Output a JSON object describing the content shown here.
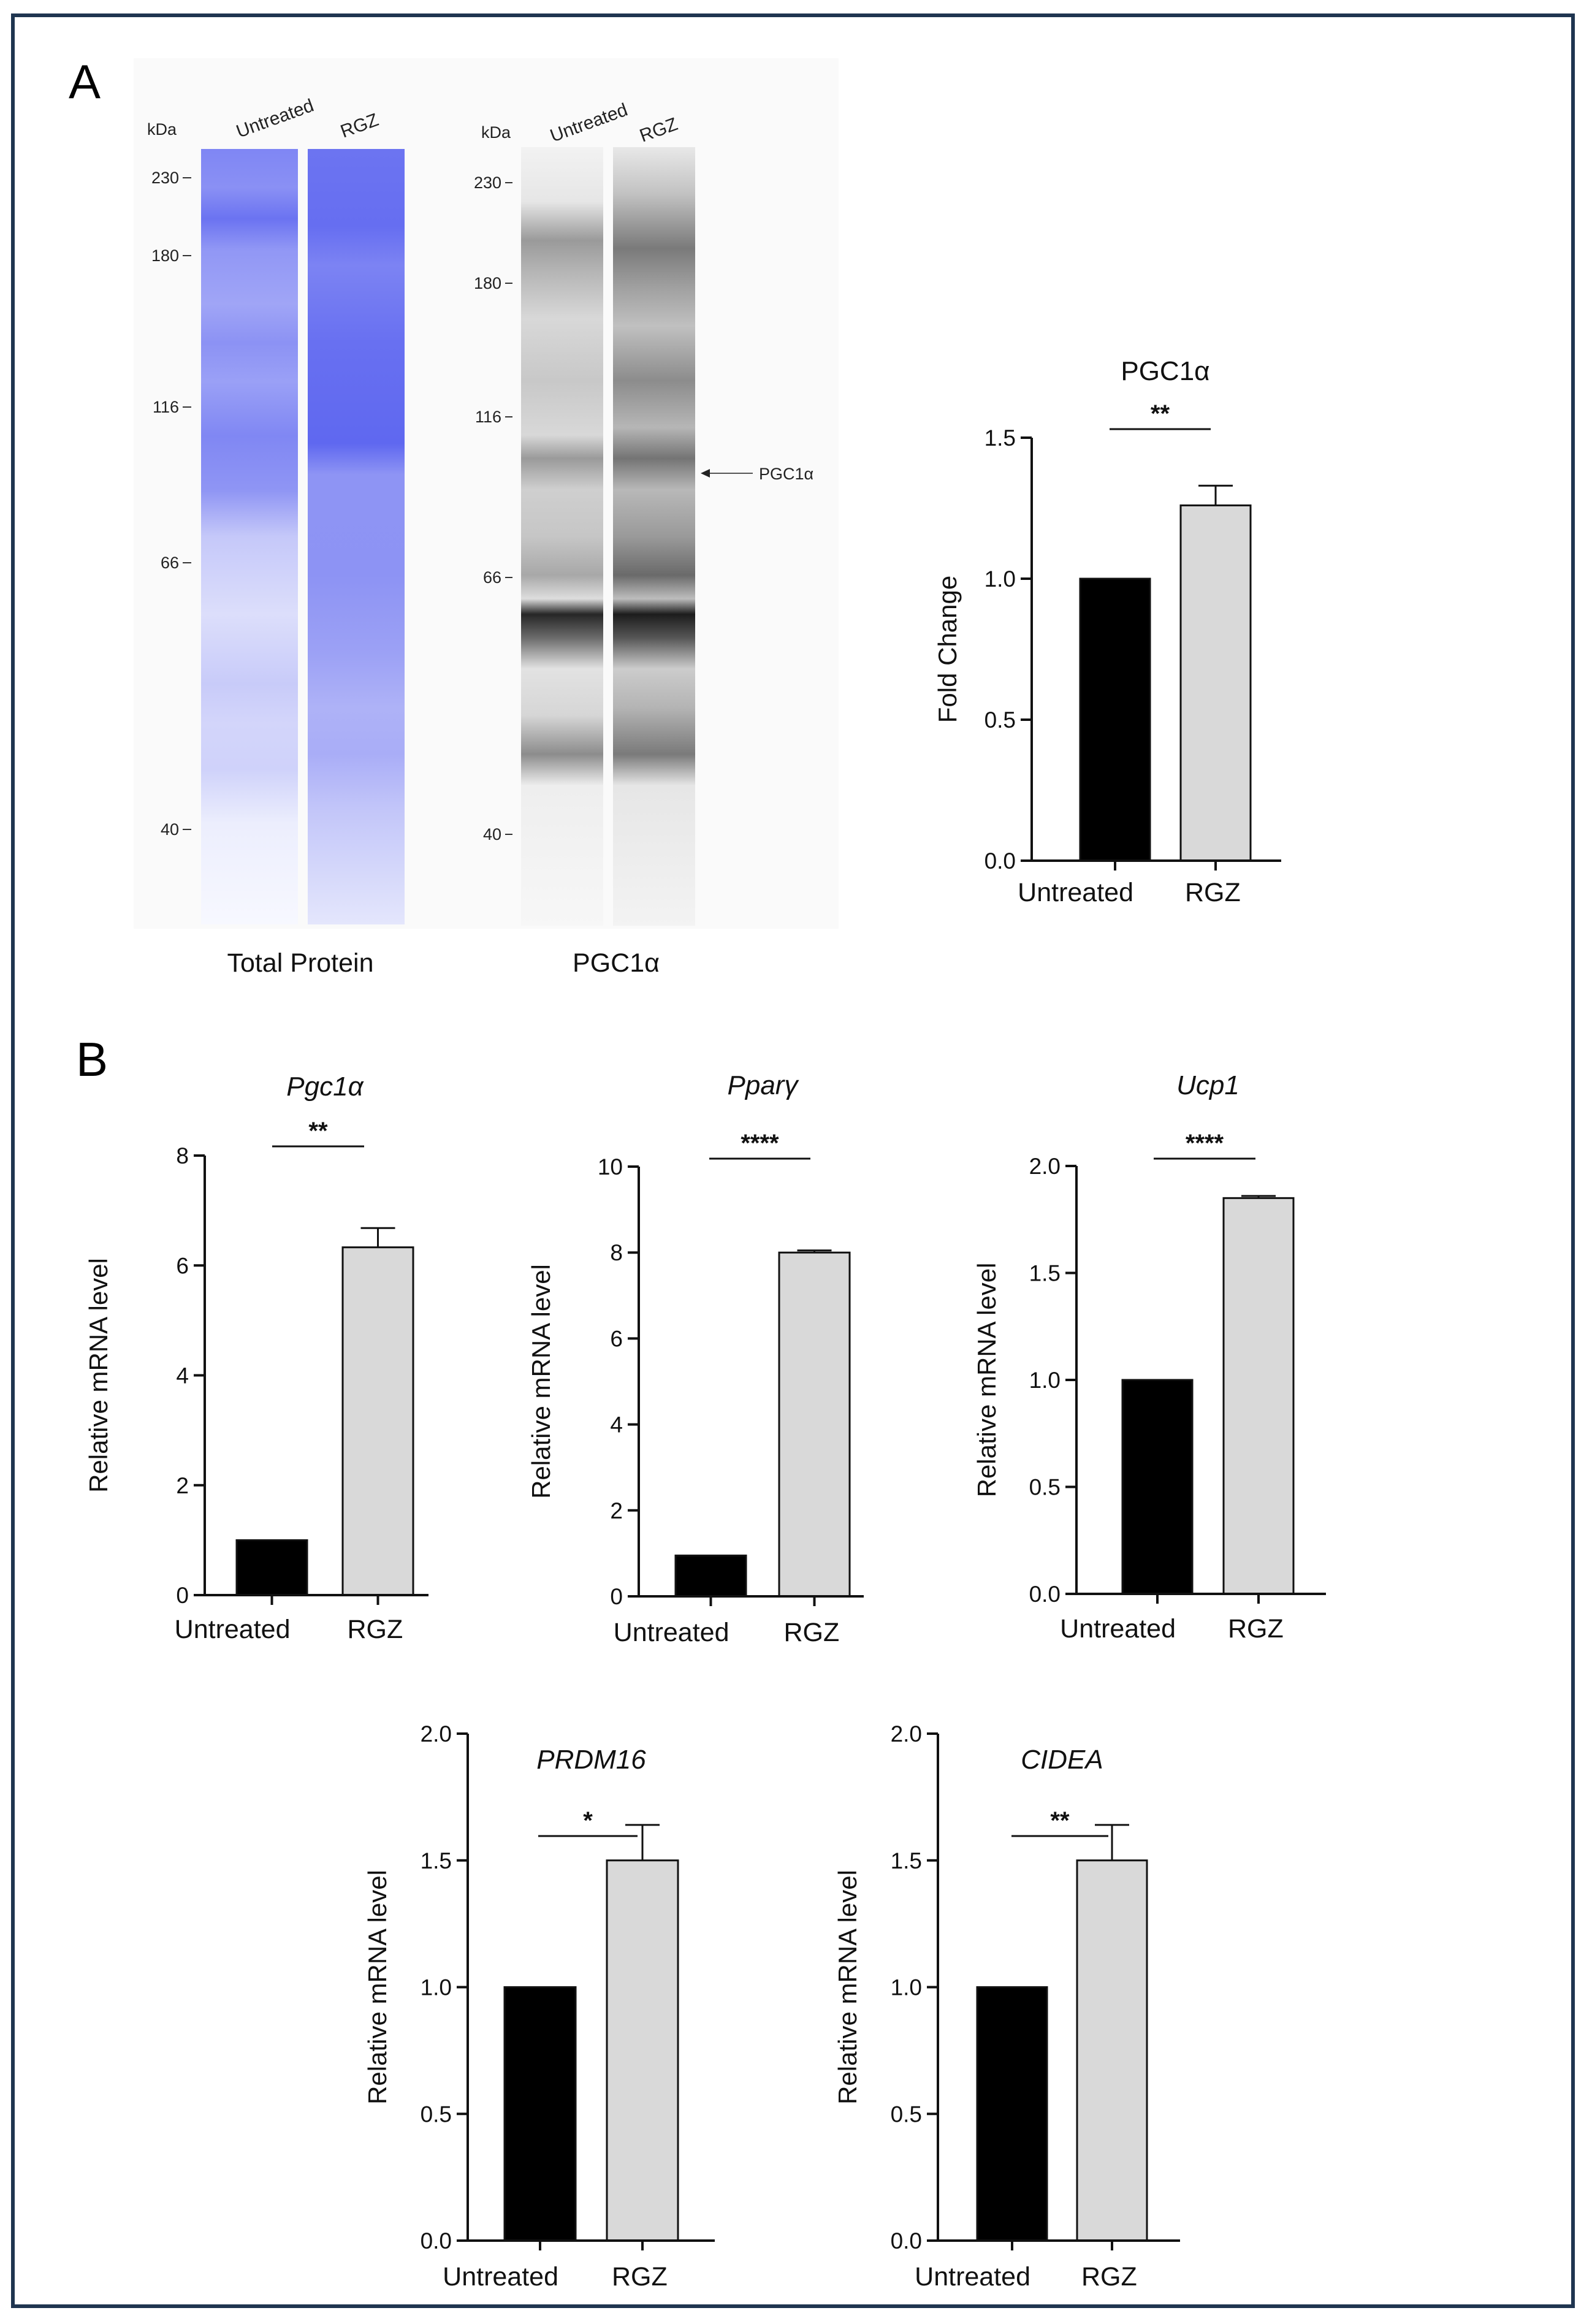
{
  "panels": {
    "a": "A",
    "b": "B"
  },
  "blot": {
    "kda_label": "kDa",
    "lane_untreated": "Untreated",
    "lane_rgz": "RGZ",
    "total_protein_markers": [
      "230",
      "180",
      "116",
      "66",
      "40"
    ],
    "pgc1a_markers": [
      "230",
      "180",
      "116",
      "66",
      "40"
    ],
    "total_protein_caption": "Total Protein",
    "pgc1a_caption": "PGC1α",
    "pgc1a_arrow_label": "PGC1α",
    "colors": {
      "total_protein": "#6b74f2",
      "pgc1a": "#3a3a3a"
    }
  },
  "chart_data": [
    {
      "id": "pgc1a-protein",
      "type": "bar",
      "title": "PGC1α",
      "title_italic": false,
      "ylabel": "Fold Change",
      "categories": [
        "Untreated",
        "RGZ"
      ],
      "values": [
        1.0,
        1.26
      ],
      "errors": [
        0,
        0.07
      ],
      "ylim": [
        0,
        1.5
      ],
      "yticks": [
        "0.0",
        "0.5",
        "1.0",
        "1.5"
      ],
      "significance": "**",
      "colors": [
        "#000000",
        "#d9d9d9"
      ]
    },
    {
      "id": "pgc1a-mrna",
      "type": "bar",
      "title": "Pgc1α",
      "title_italic": true,
      "ylabel": "Relative mRNA level",
      "categories": [
        "Untreated",
        "RGZ"
      ],
      "values": [
        1.0,
        6.33
      ],
      "errors": [
        0,
        0.35
      ],
      "ylim": [
        0,
        8
      ],
      "yticks": [
        "0",
        "2",
        "4",
        "6",
        "8"
      ],
      "significance": "**",
      "colors": [
        "#000000",
        "#d9d9d9"
      ]
    },
    {
      "id": "ppary-mrna",
      "type": "bar",
      "title": "Pparγ",
      "title_italic": true,
      "ylabel": "Relative mRNA level",
      "categories": [
        "Untreated",
        "RGZ"
      ],
      "values": [
        0.95,
        8.0
      ],
      "errors": [
        0,
        0.05
      ],
      "ylim": [
        0,
        10
      ],
      "yticks": [
        "0",
        "2",
        "4",
        "6",
        "8",
        "10"
      ],
      "significance": "****",
      "colors": [
        "#000000",
        "#d9d9d9"
      ]
    },
    {
      "id": "ucp1-mrna",
      "type": "bar",
      "title": "Ucp1",
      "title_italic": true,
      "ylabel": "Relative mRNA level",
      "categories": [
        "Untreated",
        "RGZ"
      ],
      "values": [
        1.0,
        1.85
      ],
      "errors": [
        0,
        0.01
      ],
      "ylim": [
        0,
        2.0
      ],
      "yticks": [
        "0.0",
        "0.5",
        "1.0",
        "1.5",
        "2.0"
      ],
      "significance": "****",
      "colors": [
        "#000000",
        "#d9d9d9"
      ]
    },
    {
      "id": "prdm16-mrna",
      "type": "bar",
      "title": "PRDM16",
      "title_italic": true,
      "ylabel": "Relative mRNA level",
      "categories": [
        "Untreated",
        "RGZ"
      ],
      "values": [
        1.0,
        1.5
      ],
      "errors": [
        0,
        0.14
      ],
      "ylim": [
        0,
        2.0
      ],
      "yticks": [
        "0.0",
        "0.5",
        "1.0",
        "1.5",
        "2.0"
      ],
      "significance": "*",
      "colors": [
        "#000000",
        "#d9d9d9"
      ]
    },
    {
      "id": "cidea-mrna",
      "type": "bar",
      "title": "CIDEA",
      "title_italic": true,
      "ylabel": "Relative mRNA level",
      "categories": [
        "Untreated",
        "RGZ"
      ],
      "values": [
        1.0,
        1.5
      ],
      "errors": [
        0,
        0.14
      ],
      "ylim": [
        0,
        2.0
      ],
      "yticks": [
        "0.0",
        "0.5",
        "1.0",
        "1.5",
        "2.0"
      ],
      "significance": "**",
      "colors": [
        "#000000",
        "#d9d9d9"
      ]
    }
  ]
}
